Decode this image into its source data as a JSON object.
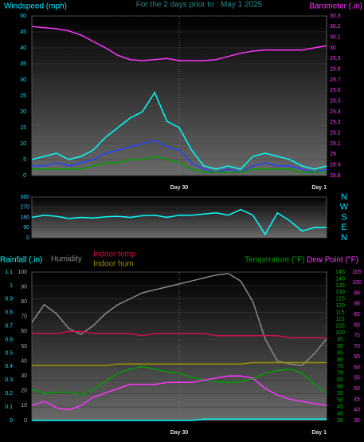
{
  "chart_data": [
    {
      "type": "line",
      "title": "For the 2 days prior to : May 1 2025",
      "grid": true,
      "x": [
        0,
        2,
        4,
        6,
        8,
        10,
        12,
        14,
        16,
        18,
        20,
        22,
        24,
        26,
        28,
        30,
        32,
        34,
        36,
        38,
        40,
        42,
        44,
        46,
        48
      ],
      "xlim": [
        0,
        48
      ],
      "xticks": [
        {
          "value": 24,
          "label": "Day 30"
        },
        {
          "value": 48,
          "label": "Day 1"
        }
      ],
      "axes": [
        {
          "label": "Windspeed (mph)",
          "color": "#00e5ff",
          "lim": [
            0,
            50
          ],
          "ticks": [
            0,
            5,
            10,
            15,
            20,
            25,
            30,
            35,
            40,
            45,
            50
          ]
        },
        {
          "label": "Barometer (.in)",
          "color": "#ff33ff",
          "lim": [
            28.8,
            30.3
          ],
          "ticks": [
            28.8,
            28.9,
            29,
            29.1,
            29.2,
            29.3,
            29.4,
            29.5,
            29.6,
            29.7,
            29.8,
            29.9,
            30,
            30.1,
            30.2,
            30.3
          ]
        }
      ],
      "series": [
        {
          "color": "#00ffff",
          "axis": 0,
          "values": [
            5,
            6,
            7,
            5,
            6,
            8,
            12,
            15,
            18,
            20,
            26,
            17,
            15,
            8,
            3,
            2,
            3,
            2,
            6,
            7,
            6,
            5,
            3,
            2,
            3
          ]
        },
        {
          "color": "#2244ff",
          "axis": 0,
          "values": [
            3,
            3,
            4,
            3,
            4,
            5,
            7,
            8,
            9,
            10,
            11,
            9,
            8,
            4,
            2,
            1,
            2,
            1,
            3,
            4,
            3,
            3,
            2,
            1,
            2
          ]
        },
        {
          "color": "#00a000",
          "axis": 0,
          "values": [
            2,
            2,
            2,
            2,
            2,
            3,
            4,
            4,
            5,
            5,
            6,
            5,
            4,
            2,
            1,
            1,
            1,
            1,
            2,
            2,
            2,
            2,
            1,
            1,
            1
          ]
        },
        {
          "color": "#ff33ff",
          "axis": 1,
          "values": [
            30.2,
            30.19,
            30.18,
            30.16,
            30.12,
            30.06,
            30.0,
            29.93,
            29.89,
            29.88,
            29.89,
            29.9,
            29.88,
            29.88,
            29.88,
            29.89,
            29.92,
            29.95,
            29.97,
            29.98,
            29.98,
            29.98,
            29.98,
            30.0,
            30.02
          ]
        }
      ]
    },
    {
      "type": "line",
      "grid": true,
      "x": [
        0,
        2,
        4,
        6,
        8,
        10,
        12,
        14,
        16,
        18,
        20,
        22,
        24,
        26,
        28,
        30,
        32,
        34,
        36,
        38,
        40,
        42,
        44,
        46,
        48
      ],
      "xlim": [
        0,
        48
      ],
      "axes": [
        {
          "color": "#33ccff",
          "lim": [
            0,
            360
          ],
          "ticks": [
            0,
            90,
            180,
            270,
            360
          ]
        },
        {
          "color": "#00e5ff",
          "lim": [
            0,
            360
          ],
          "ticks": [
            {
              "value": 360,
              "label": "N"
            },
            {
              "value": 270,
              "label": "W"
            },
            {
              "value": 180,
              "label": "S"
            },
            {
              "value": 90,
              "label": "E"
            },
            {
              "value": 0,
              "label": "N"
            }
          ]
        }
      ],
      "series": [
        {
          "color": "#00ffff",
          "axis": 0,
          "values": [
            180,
            200,
            190,
            170,
            180,
            175,
            185,
            190,
            180,
            195,
            200,
            180,
            200,
            200,
            210,
            220,
            200,
            250,
            200,
            30,
            220,
            150,
            60,
            90,
            90
          ]
        }
      ]
    },
    {
      "type": "line",
      "grid": true,
      "x": [
        0,
        2,
        4,
        6,
        8,
        10,
        12,
        14,
        16,
        18,
        20,
        22,
        24,
        26,
        28,
        30,
        32,
        34,
        36,
        38,
        40,
        42,
        44,
        46,
        48
      ],
      "xlim": [
        0,
        48
      ],
      "xticks": [
        {
          "value": 24,
          "label": "Day 30"
        },
        {
          "value": 48,
          "label": "Day 1"
        }
      ],
      "axes": [
        {
          "color": "#00e5ff",
          "lim": [
            0,
            1.1
          ],
          "ticks": [
            0,
            0.1,
            0.2,
            0.3,
            0.4,
            0.5,
            0.6,
            0.7,
            0.8,
            0.9,
            1,
            1.1
          ]
        },
        {
          "color": "#aaaaaa",
          "lim": [
            0,
            100
          ],
          "ticks": [
            0,
            10,
            20,
            30,
            40,
            50,
            60,
            70,
            80,
            90,
            100
          ]
        },
        {
          "color": "#00b000",
          "lim": [
            35,
            145
          ],
          "ticks": [
            35,
            40,
            45,
            50,
            55,
            60,
            65,
            70,
            75,
            80,
            85,
            90,
            95,
            100,
            105,
            110,
            115,
            120,
            125,
            130,
            135,
            140,
            145
          ]
        },
        {
          "color": "#ff33ff",
          "lim": [
            35,
            105
          ],
          "ticks": [
            35,
            40,
            45,
            50,
            55,
            60,
            65,
            70,
            75,
            80,
            85,
            90,
            95,
            100,
            105
          ]
        }
      ],
      "series": [
        {
          "name": "Humidity",
          "color": "#8a8a8a",
          "axis": 1,
          "values": [
            66,
            78,
            72,
            62,
            58,
            64,
            72,
            78,
            82,
            86,
            88,
            90,
            92,
            94,
            96,
            98,
            99,
            94,
            80,
            55,
            40,
            38,
            37,
            45,
            55
          ]
        },
        {
          "name": "Indoor temp",
          "color": "#d0104a",
          "axis": 3,
          "values": [
            76,
            76,
            76,
            77,
            77,
            76,
            76,
            76,
            76,
            75,
            76,
            76,
            76,
            76,
            76,
            75,
            75,
            75,
            75,
            75,
            75,
            74,
            74,
            74,
            74
          ]
        },
        {
          "name": "Indoor hum",
          "color": "#a09000",
          "axis": 1,
          "values": [
            37,
            37,
            37,
            37,
            37,
            37,
            37,
            38,
            38,
            38,
            38,
            38,
            38,
            38,
            38,
            38,
            38,
            38,
            39,
            39,
            39,
            39,
            39,
            39,
            39
          ]
        },
        {
          "name": "Temperature (°F)",
          "color": "#00a000",
          "axis": 2,
          "values": [
            58,
            55,
            56,
            56,
            54,
            58,
            64,
            70,
            73,
            75,
            73,
            71,
            70,
            67,
            65,
            64,
            63,
            64,
            66,
            70,
            72,
            73,
            70,
            62,
            55
          ]
        },
        {
          "name": "Dew Point (°F)",
          "color": "#ff33ff",
          "axis": 3,
          "values": [
            42,
            44,
            41,
            40,
            42,
            46,
            48,
            50,
            52,
            52,
            52,
            53,
            53,
            53,
            54,
            55,
            56,
            56,
            55,
            50,
            47,
            45,
            44,
            43,
            42
          ]
        },
        {
          "name": "Rainfall (.in)",
          "color": "#00ffff",
          "axis": 0,
          "values": [
            0,
            0,
            0,
            0,
            0,
            0,
            0,
            0,
            0,
            0,
            0,
            0,
            0,
            0,
            0.01,
            0.01,
            0.01,
            0.01,
            0.01,
            0.01,
            0.01,
            0.01,
            0.01,
            0.01,
            0.01
          ]
        }
      ]
    }
  ]
}
